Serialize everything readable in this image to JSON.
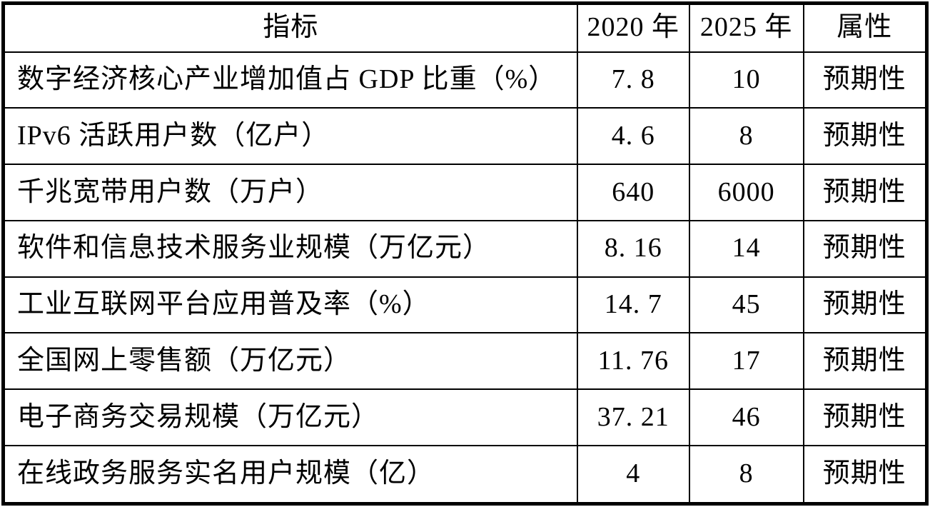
{
  "chart_data": {
    "type": "table",
    "columns": [
      "指标",
      "2020 年",
      "2025 年",
      "属性"
    ],
    "rows": [
      [
        "数字经济核心产业增加值占 GDP 比重（%）",
        "7. 8",
        "10",
        "预期性"
      ],
      [
        "IPv6 活跃用户数（亿户）",
        "4. 6",
        "8",
        "预期性"
      ],
      [
        "千兆宽带用户数（万户）",
        "640",
        "6000",
        "预期性"
      ],
      [
        "软件和信息技术服务业规模（万亿元）",
        "8. 16",
        "14",
        "预期性"
      ],
      [
        "工业互联网平台应用普及率（%）",
        "14. 7",
        "45",
        "预期性"
      ],
      [
        "全国网上零售额（万亿元）",
        "11. 76",
        "17",
        "预期性"
      ],
      [
        "电子商务交易规模（万亿元）",
        "37. 21",
        "46",
        "预期性"
      ],
      [
        "在线政务服务实名用户规模（亿）",
        "4",
        "8",
        "预期性"
      ]
    ],
    "layout": {
      "grid": "on",
      "border_color": "#000000",
      "background_color": "#ffffff",
      "text_color": "#000000"
    }
  }
}
